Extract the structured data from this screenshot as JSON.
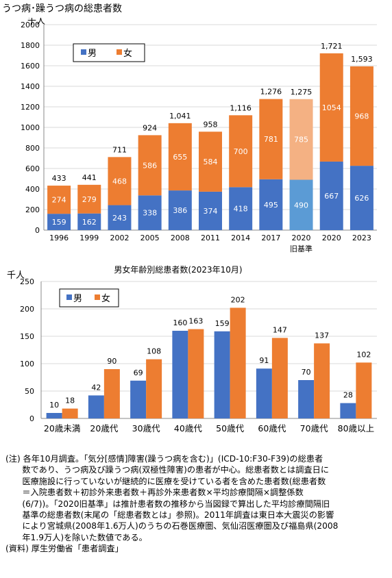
{
  "title": "うつ病･躁うつ病の総患者数",
  "colors": {
    "male": "#4472c4",
    "female": "#ed7d31",
    "male_light": "#5b9bd5",
    "female_light": "#f4b183",
    "grid": "#d9d9d9"
  },
  "chart_data": [
    {
      "type": "bar",
      "stacked": true,
      "title": "",
      "ylabel": "千人",
      "ylim": [
        0,
        2000
      ],
      "yticks": [
        0,
        200,
        400,
        600,
        800,
        1000,
        1200,
        1400,
        1600,
        1800,
        2000
      ],
      "grid": true,
      "legend": "top-left",
      "categories": [
        "1996",
        "1999",
        "2002",
        "2005",
        "2008",
        "2011",
        "2014",
        "2017",
        "2020",
        "2020",
        "2023"
      ],
      "category_sublabels": [
        "",
        "",
        "",
        "",
        "",
        "",
        "",
        "",
        "旧基準",
        "",
        ""
      ],
      "highlight_index": 8,
      "series": [
        {
          "name": "男",
          "values": [
            159,
            162,
            243,
            338,
            386,
            374,
            418,
            495,
            490,
            667,
            626
          ]
        },
        {
          "name": "女",
          "values": [
            274,
            279,
            468,
            586,
            655,
            584,
            700,
            781,
            785,
            1054,
            968
          ]
        }
      ],
      "totals": [
        "433",
        "441",
        "711",
        "924",
        "1,041",
        "958",
        "1,116",
        "1,276",
        "1,275",
        "1,721",
        "1,593"
      ]
    },
    {
      "type": "bar",
      "stacked": false,
      "title": "男女年齢別総患者数(2023年10月)",
      "ylabel": "千人",
      "ylim": [
        0,
        250
      ],
      "yticks": [
        0,
        50,
        100,
        150,
        200,
        250
      ],
      "grid": true,
      "legend": "top-left",
      "categories": [
        "20歳未満",
        "20歳代",
        "30歳代",
        "40歳代",
        "50歳代",
        "60歳代",
        "70歳代",
        "80歳以上"
      ],
      "series": [
        {
          "name": "男",
          "values": [
            10,
            42,
            69,
            160,
            159,
            91,
            70,
            28
          ]
        },
        {
          "name": "女",
          "values": [
            18,
            90,
            108,
            163,
            202,
            147,
            137,
            102
          ]
        }
      ]
    }
  ],
  "note": {
    "lines": [
      "(注) 各年10月調査。「気分[感情]障害(躁うつ病を含む)」(ICD-10:F30-F39)の総患者",
      "　　数であり、うつ病及び躁うつ病(双極性障害)の患者が中心。総患者数とは調査日に",
      "　　医療施設に行っていないが継続的に医療を受けている者を含めた患者数(総患者数",
      "　　＝入院患者数＋初診外来患者数＋再診外来患者数×平均診療間隔×調整係数",
      "　　(6/7))。「2020旧基準」は推計患者数の推移から当図録で算出した平均診療間隔旧",
      "　　基準の総患者数(末尾の「総患者数とは」参照)。2011年調査は東日本大震災の影響",
      "　　により宮城県(2008年1.6万人)のうちの石巻医療圏、気仙沼医療圏及び福島県(2008",
      "　　年1.9万人)を除いた数値である。"
    ],
    "source": "(資料) 厚生労働省「患者調査」"
  }
}
